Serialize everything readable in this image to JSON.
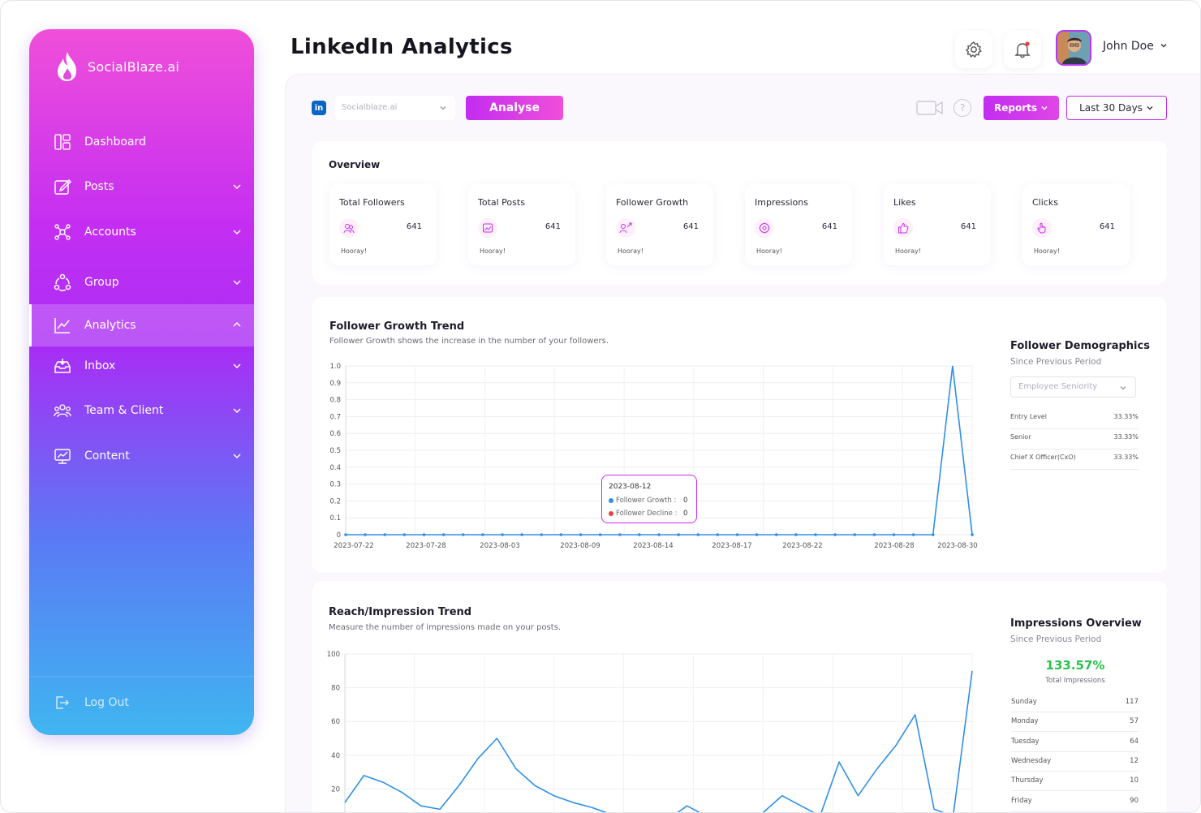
{
  "brand": {
    "name": "SocialBlaze.ai"
  },
  "sidebar": {
    "items": [
      {
        "label": "Dashboard",
        "icon": "dashboard-icon"
      },
      {
        "label": "Posts",
        "icon": "posts-icon"
      },
      {
        "label": "Accounts",
        "icon": "accounts-icon"
      },
      {
        "label": "Group",
        "icon": "group-icon"
      },
      {
        "label": "Analytics",
        "icon": "analytics-icon",
        "active": true
      },
      {
        "label": "Inbox",
        "icon": "inbox-icon"
      },
      {
        "label": "Team & Client",
        "icon": "team-icon"
      },
      {
        "label": "Content",
        "icon": "content-icon"
      }
    ],
    "logout_label": "Log Out"
  },
  "header": {
    "title": "LinkedIn Analytics",
    "user_name": "John Doe"
  },
  "toolbar": {
    "network_badge": "in",
    "account_select": "Socialblaze.ai",
    "analyse_label": "Analyse",
    "help_label": "?",
    "reports_label": "Reports",
    "range_label": "Last 30 Days"
  },
  "overview": {
    "title": "Overview",
    "stats": [
      {
        "label": "Total Followers",
        "value": "641",
        "foot": "Hooray!",
        "icon": "followers-icon"
      },
      {
        "label": "Total Posts",
        "value": "641",
        "foot": "Hooray!",
        "icon": "posts-icon"
      },
      {
        "label": "Follower Growth",
        "value": "641",
        "foot": "Hooray!",
        "icon": "growth-icon"
      },
      {
        "label": "Impressions",
        "value": "641",
        "foot": "Hooray!",
        "icon": "impressions-icon"
      },
      {
        "label": "Likes",
        "value": "641",
        "foot": "Hooray!",
        "icon": "like-icon"
      },
      {
        "label": "Clicks",
        "value": "641",
        "foot": "Hooray!",
        "icon": "click-icon"
      }
    ]
  },
  "follower_trend": {
    "title": "Follower Growth Trend",
    "subtitle": "Follower Growth shows the increase in the number of your followers.",
    "tooltip": {
      "date": "2023-08-12",
      "rows": [
        {
          "label": "Follower Growth",
          "value": "0",
          "color": "#2f8fe8"
        },
        {
          "label": "Follower Decline",
          "value": "0",
          "color": "#e84040"
        }
      ]
    }
  },
  "demographics": {
    "title": "Follower Demographics",
    "subtitle": "Since Previous Period",
    "select": "Employee Seniority",
    "rows": [
      {
        "label": "Entry Level",
        "value": "33.33%"
      },
      {
        "label": "Senior",
        "value": "33.33%"
      },
      {
        "label": "Chief X Officer(CxO)",
        "value": "33.33%"
      }
    ]
  },
  "reach_trend": {
    "title": "Reach/Impression Trend",
    "subtitle": "Measure the number of impressions made on your posts."
  },
  "impressions_overview": {
    "title": "Impressions Overview",
    "subtitle": "Since Previous Period",
    "total_pct": "133.57%",
    "total_caption": "Total Impressions",
    "rows": [
      {
        "label": "Sunday",
        "value": "117"
      },
      {
        "label": "Monday",
        "value": "57"
      },
      {
        "label": "Tuesday",
        "value": "64"
      },
      {
        "label": "Wednesday",
        "value": "12"
      },
      {
        "label": "Thursday",
        "value": "10"
      },
      {
        "label": "Friday",
        "value": "90"
      }
    ]
  },
  "chart_data": [
    {
      "type": "line",
      "title": "Follower Growth Trend",
      "x_tick_labels": [
        "2023-07-22",
        "2023-07-28",
        "2023-08-03",
        "2023-08-09",
        "2023-08-14",
        "2023-08-17",
        "2023-08-22",
        "2023-08-28",
        "2023-08-30"
      ],
      "y_ticks": [
        "0",
        "0.1",
        "0.2",
        "0.3",
        "0.4",
        "0.5",
        "0.6",
        "0.7",
        "0.8",
        "0.9",
        "1.0"
      ],
      "ylim": [
        0,
        1
      ],
      "grid": true,
      "series": [
        {
          "name": "Follower Growth",
          "color": "#2f8fe8",
          "values": [
            0,
            0,
            0,
            0,
            0,
            0,
            0,
            0,
            0,
            0,
            0,
            0,
            0,
            0,
            0,
            0,
            0,
            0,
            0,
            0,
            0,
            0,
            0,
            0,
            0,
            0,
            0,
            0,
            0,
            0,
            0,
            1,
            0
          ]
        }
      ]
    },
    {
      "type": "line",
      "title": "Reach/Impression Trend",
      "y_ticks": [
        "20",
        "40",
        "60",
        "80",
        "100"
      ],
      "ylim": [
        0,
        100
      ],
      "grid": true,
      "series": [
        {
          "color": "#2f8fe8",
          "values": [
            12,
            28,
            24,
            18,
            10,
            8,
            22,
            38,
            50,
            32,
            22,
            16,
            12,
            9,
            5,
            2,
            -4,
            2,
            10,
            4,
            0,
            -2,
            6,
            16,
            10,
            4,
            36,
            16,
            32,
            46,
            64,
            8,
            4,
            90
          ]
        }
      ]
    }
  ],
  "colors": {
    "accent": "#c42ef2",
    "accent2": "#f04fd9",
    "line": "#2f8fe8",
    "positive": "#27c24a"
  }
}
